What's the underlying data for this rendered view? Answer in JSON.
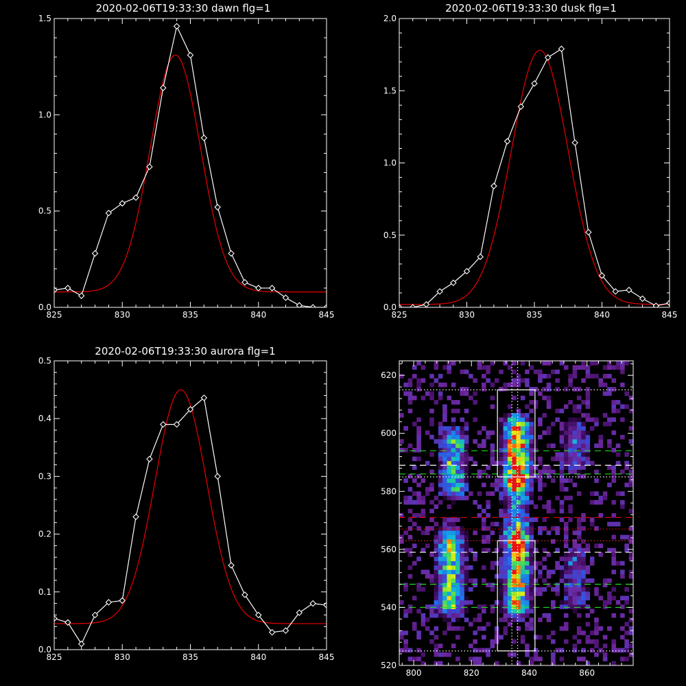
{
  "colors": {
    "background": "#000000",
    "foreground": "#ffffff",
    "data": "#ffffff",
    "fit": "#dd0000"
  },
  "chart_data": [
    {
      "id": "dawn",
      "type": "line",
      "title": "2020-02-06T19:33:30 dawn flg=1",
      "xlim": [
        825,
        845
      ],
      "ylim": [
        0,
        1.5
      ],
      "xticks": [
        825,
        830,
        835,
        840,
        845
      ],
      "yticks": [
        0.0,
        0.5,
        1.0,
        1.5
      ],
      "ytick_labels": [
        "0.0",
        "0.5",
        "1.0",
        "1.5"
      ],
      "series": [
        {
          "kind": "observed",
          "x": [
            825,
            826,
            827,
            828,
            829,
            830,
            831,
            832,
            833,
            834,
            835,
            836,
            837,
            838,
            839,
            840,
            841,
            842,
            843,
            844,
            845
          ],
          "y": [
            0.09,
            0.1,
            0.06,
            0.28,
            0.49,
            0.54,
            0.57,
            0.73,
            1.14,
            1.46,
            1.31,
            0.88,
            0.52,
            0.28,
            0.13,
            0.1,
            0.1,
            0.05,
            0.01,
            0.0,
            0.0
          ]
        },
        {
          "kind": "fit",
          "model": "gaussian",
          "center": 833.9,
          "sigma": 1.85,
          "amplitude": 1.23,
          "baseline": 0.08
        }
      ]
    },
    {
      "id": "dusk",
      "type": "line",
      "title": "2020-02-06T19:33:30 dusk flg=1",
      "xlim": [
        825,
        845
      ],
      "ylim": [
        0,
        2.0
      ],
      "xticks": [
        825,
        830,
        835,
        840,
        845
      ],
      "yticks": [
        0.0,
        0.5,
        1.0,
        1.5,
        2.0
      ],
      "ytick_labels": [
        "0.0",
        "0.5",
        "1.0",
        "1.5",
        "2.0"
      ],
      "series": [
        {
          "kind": "observed",
          "x": [
            825,
            826,
            827,
            828,
            829,
            830,
            831,
            832,
            833,
            834,
            835,
            836,
            837,
            838,
            839,
            840,
            841,
            842,
            843,
            844,
            845
          ],
          "y": [
            0.0,
            0.0,
            0.02,
            0.11,
            0.17,
            0.25,
            0.35,
            0.84,
            1.15,
            1.39,
            1.55,
            1.73,
            1.79,
            1.14,
            0.52,
            0.22,
            0.11,
            0.12,
            0.06,
            0.01,
            0.03
          ]
        },
        {
          "kind": "fit",
          "model": "gaussian",
          "center": 835.4,
          "sigma": 2.1,
          "amplitude": 1.76,
          "baseline": 0.02
        }
      ]
    },
    {
      "id": "aurora",
      "type": "line",
      "title": "2020-02-06T19:33:30 aurora flg=1",
      "xlim": [
        825,
        845
      ],
      "ylim": [
        0,
        0.5
      ],
      "xticks": [
        825,
        830,
        835,
        840,
        845
      ],
      "yticks": [
        0.0,
        0.1,
        0.2,
        0.3,
        0.4,
        0.5
      ],
      "ytick_labels": [
        "0.0",
        "0.1",
        "0.2",
        "0.3",
        "0.4",
        "0.5"
      ],
      "series": [
        {
          "kind": "observed",
          "x": [
            825,
            826,
            827,
            828,
            829,
            830,
            831,
            832,
            833,
            834,
            835,
            836,
            837,
            838,
            839,
            840,
            841,
            842,
            843,
            844,
            845
          ],
          "y": [
            0.054,
            0.047,
            0.01,
            0.06,
            0.082,
            0.085,
            0.23,
            0.33,
            0.39,
            0.39,
            0.416,
            0.436,
            0.3,
            0.146,
            0.095,
            0.06,
            0.03,
            0.033,
            0.064,
            0.08,
            0.077
          ]
        },
        {
          "kind": "fit",
          "model": "gaussian",
          "center": 834.3,
          "sigma": 1.9,
          "amplitude": 0.405,
          "baseline": 0.045
        }
      ]
    },
    {
      "id": "spectral-image",
      "type": "heatmap",
      "title": "",
      "xlim": [
        795,
        876
      ],
      "ylim": [
        520,
        625
      ],
      "xticks": [
        800,
        820,
        840,
        860
      ],
      "yticks": [
        520,
        540,
        560,
        580,
        600,
        620
      ],
      "colormap": [
        "#000000",
        "#3c0a5a",
        "#6e28a0",
        "#3c46d2",
        "#1e78f0",
        "#14b4dc",
        "#28d278",
        "#96e628",
        "#f0f014",
        "#ff8c00",
        "#e61414"
      ],
      "emission_bands": [
        {
          "x_center": 813,
          "y_range": [
            581,
            597
          ],
          "peak": 0.55
        },
        {
          "x_center": 812,
          "y_range": [
            540,
            563
          ],
          "peak": 0.7
        },
        {
          "x_center": 835,
          "y_range": [
            583,
            601
          ],
          "peak": 1.0
        },
        {
          "x_center": 835,
          "y_range": [
            540,
            563
          ],
          "peak": 0.85
        },
        {
          "x_center": 835,
          "y_range": [
            563,
            583
          ],
          "peak": 0.4
        },
        {
          "x_center": 855,
          "y_range": [
            590,
            600
          ],
          "peak": 0.25
        },
        {
          "x_center": 855,
          "y_range": [
            542,
            556
          ],
          "peak": 0.25
        }
      ],
      "boxes": [
        {
          "x_range": [
            829,
            842
          ],
          "y_range": [
            585,
            615
          ]
        },
        {
          "x_range": [
            829,
            842
          ],
          "y_range": [
            525,
            563
          ]
        }
      ],
      "guide_lines": [
        {
          "orientation": "horizontal",
          "value": 615,
          "style": "dotted",
          "color": "#ffffff"
        },
        {
          "orientation": "horizontal",
          "value": 594,
          "style": "dashed",
          "color": "#22dd22"
        },
        {
          "orientation": "horizontal",
          "value": 589,
          "style": "dashed",
          "color": "#ffffff"
        },
        {
          "orientation": "horizontal",
          "value": 586,
          "style": "dashed",
          "color": "#22dd22"
        },
        {
          "orientation": "horizontal",
          "value": 585,
          "style": "dotted",
          "color": "#ffffff"
        },
        {
          "orientation": "horizontal",
          "value": 571,
          "style": "dashed",
          "color": "#dd0000"
        },
        {
          "orientation": "horizontal",
          "value": 567,
          "style": "dotted",
          "color": "#dd0000"
        },
        {
          "orientation": "horizontal",
          "value": 563,
          "style": "dotted",
          "color": "#ff3333"
        },
        {
          "orientation": "horizontal",
          "value": 559,
          "style": "dashed",
          "color": "#ffffff"
        },
        {
          "orientation": "horizontal",
          "value": 548,
          "style": "dashed",
          "color": "#22dd22"
        },
        {
          "orientation": "horizontal",
          "value": 540,
          "style": "dashed",
          "color": "#22dd22"
        },
        {
          "orientation": "horizontal",
          "value": 525,
          "style": "dotted",
          "color": "#ffffff"
        },
        {
          "orientation": "vertical",
          "value": 834,
          "style": "dotted",
          "color": "#ffffff"
        },
        {
          "orientation": "vertical",
          "value": 836,
          "style": "dotted",
          "color": "#ffffff"
        }
      ]
    }
  ]
}
